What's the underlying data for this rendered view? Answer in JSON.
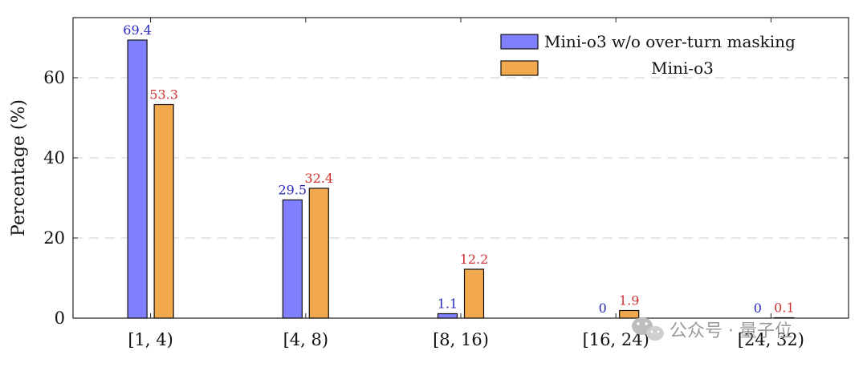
{
  "chart_data": {
    "type": "bar",
    "categories": [
      "[1, 4)",
      "[4, 8)",
      "[8, 16)",
      "[16, 24)",
      "[24, 32)"
    ],
    "series": [
      {
        "name": "Mini-o3 w/o over-turn masking",
        "values": [
          69.4,
          29.5,
          1.1,
          0,
          0
        ],
        "labels": [
          "69.4",
          "29.5",
          "1.1",
          "0",
          "0"
        ],
        "color": "#8080ff",
        "label_color": "#2b2bbf"
      },
      {
        "name": "Mini-o3",
        "values": [
          53.3,
          32.4,
          12.2,
          1.9,
          0.1
        ],
        "labels": [
          "53.3",
          "32.4",
          "12.2",
          "1.9",
          "0.1"
        ],
        "color": "#f2a94d",
        "label_color": "#d03030"
      }
    ],
    "ylabel": "Percentage (%)",
    "xlabel": "",
    "ylim": [
      0,
      75
    ],
    "yticks": [
      0,
      20,
      40,
      60
    ],
    "grid": "horizontal-dashed",
    "legend_position": "top-right"
  },
  "watermark": {
    "text": "公众号 · 量子位",
    "icon": "wechat-icon"
  }
}
